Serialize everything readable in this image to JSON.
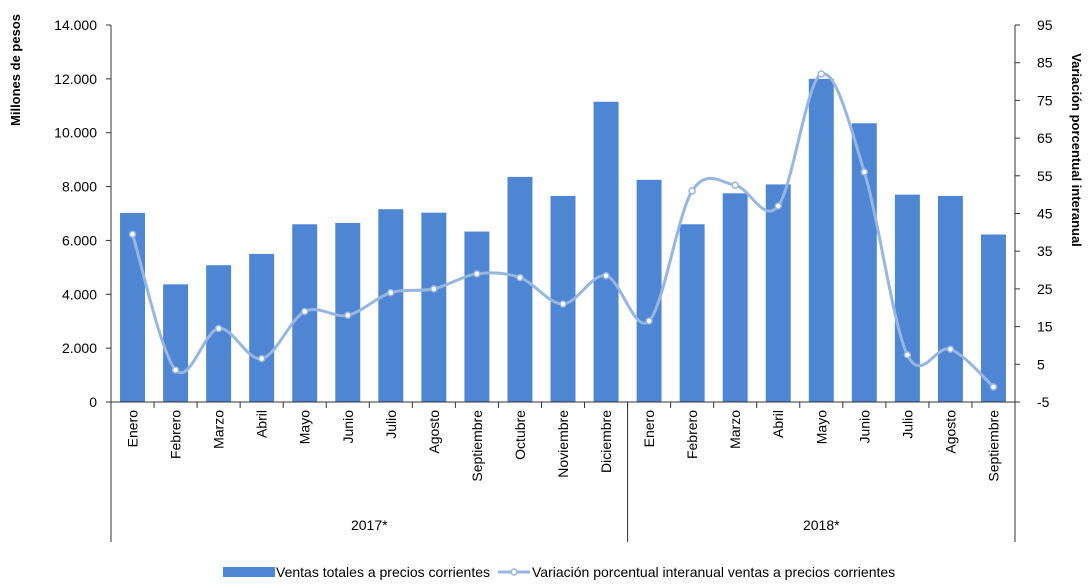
{
  "chart_data": {
    "type": "bar",
    "title": "",
    "y_left": {
      "label": "Millones de pesos",
      "ylim": [
        0,
        14000
      ],
      "ticks": [
        "0",
        "2.000",
        "4.000",
        "6.000",
        "8.000",
        "10.000",
        "12.000",
        "14.000"
      ]
    },
    "y_right": {
      "label": "Variación porcentual interanual",
      "ylim": [
        -5,
        95
      ],
      "ticks": [
        "-5",
        "5",
        "15",
        "25",
        "35",
        "45",
        "55",
        "65",
        "75",
        "85",
        "95"
      ]
    },
    "groups": [
      {
        "label": "2017*",
        "categories": [
          "Enero",
          "Febrero",
          "Marzo",
          "Abril",
          "Mayo",
          "Junio",
          "Julio",
          "Agosto",
          "Septiembre",
          "Octubre",
          "Noviembre",
          "Diciembre"
        ]
      },
      {
        "label": "2018*",
        "categories": [
          "Enero",
          "Febrero",
          "Marzo",
          "Abril",
          "Mayo",
          "Junio",
          "Julio",
          "Agosto",
          "Septiembre"
        ]
      }
    ],
    "series": [
      {
        "name": "Ventas totales a precios corrientes",
        "type": "bar",
        "axis": "left",
        "color": "#4F86D4",
        "values": [
          7020,
          4370,
          5080,
          5500,
          6600,
          6650,
          7160,
          7030,
          6330,
          8360,
          7650,
          11150,
          8250,
          6600,
          7750,
          8080,
          12000,
          10350,
          7700,
          7650,
          6220
        ]
      },
      {
        "name": "Variación porcentual interanual ventas a precios corrientes",
        "type": "line",
        "axis": "right",
        "color": "#97B6E0",
        "values": [
          39.5,
          3.5,
          14.5,
          6.5,
          19,
          18,
          24,
          25,
          29,
          28,
          21,
          28.5,
          16.5,
          51,
          52.5,
          47,
          82,
          56,
          7.5,
          9,
          -1
        ]
      }
    ],
    "legend_position": "bottom",
    "grid": false
  }
}
